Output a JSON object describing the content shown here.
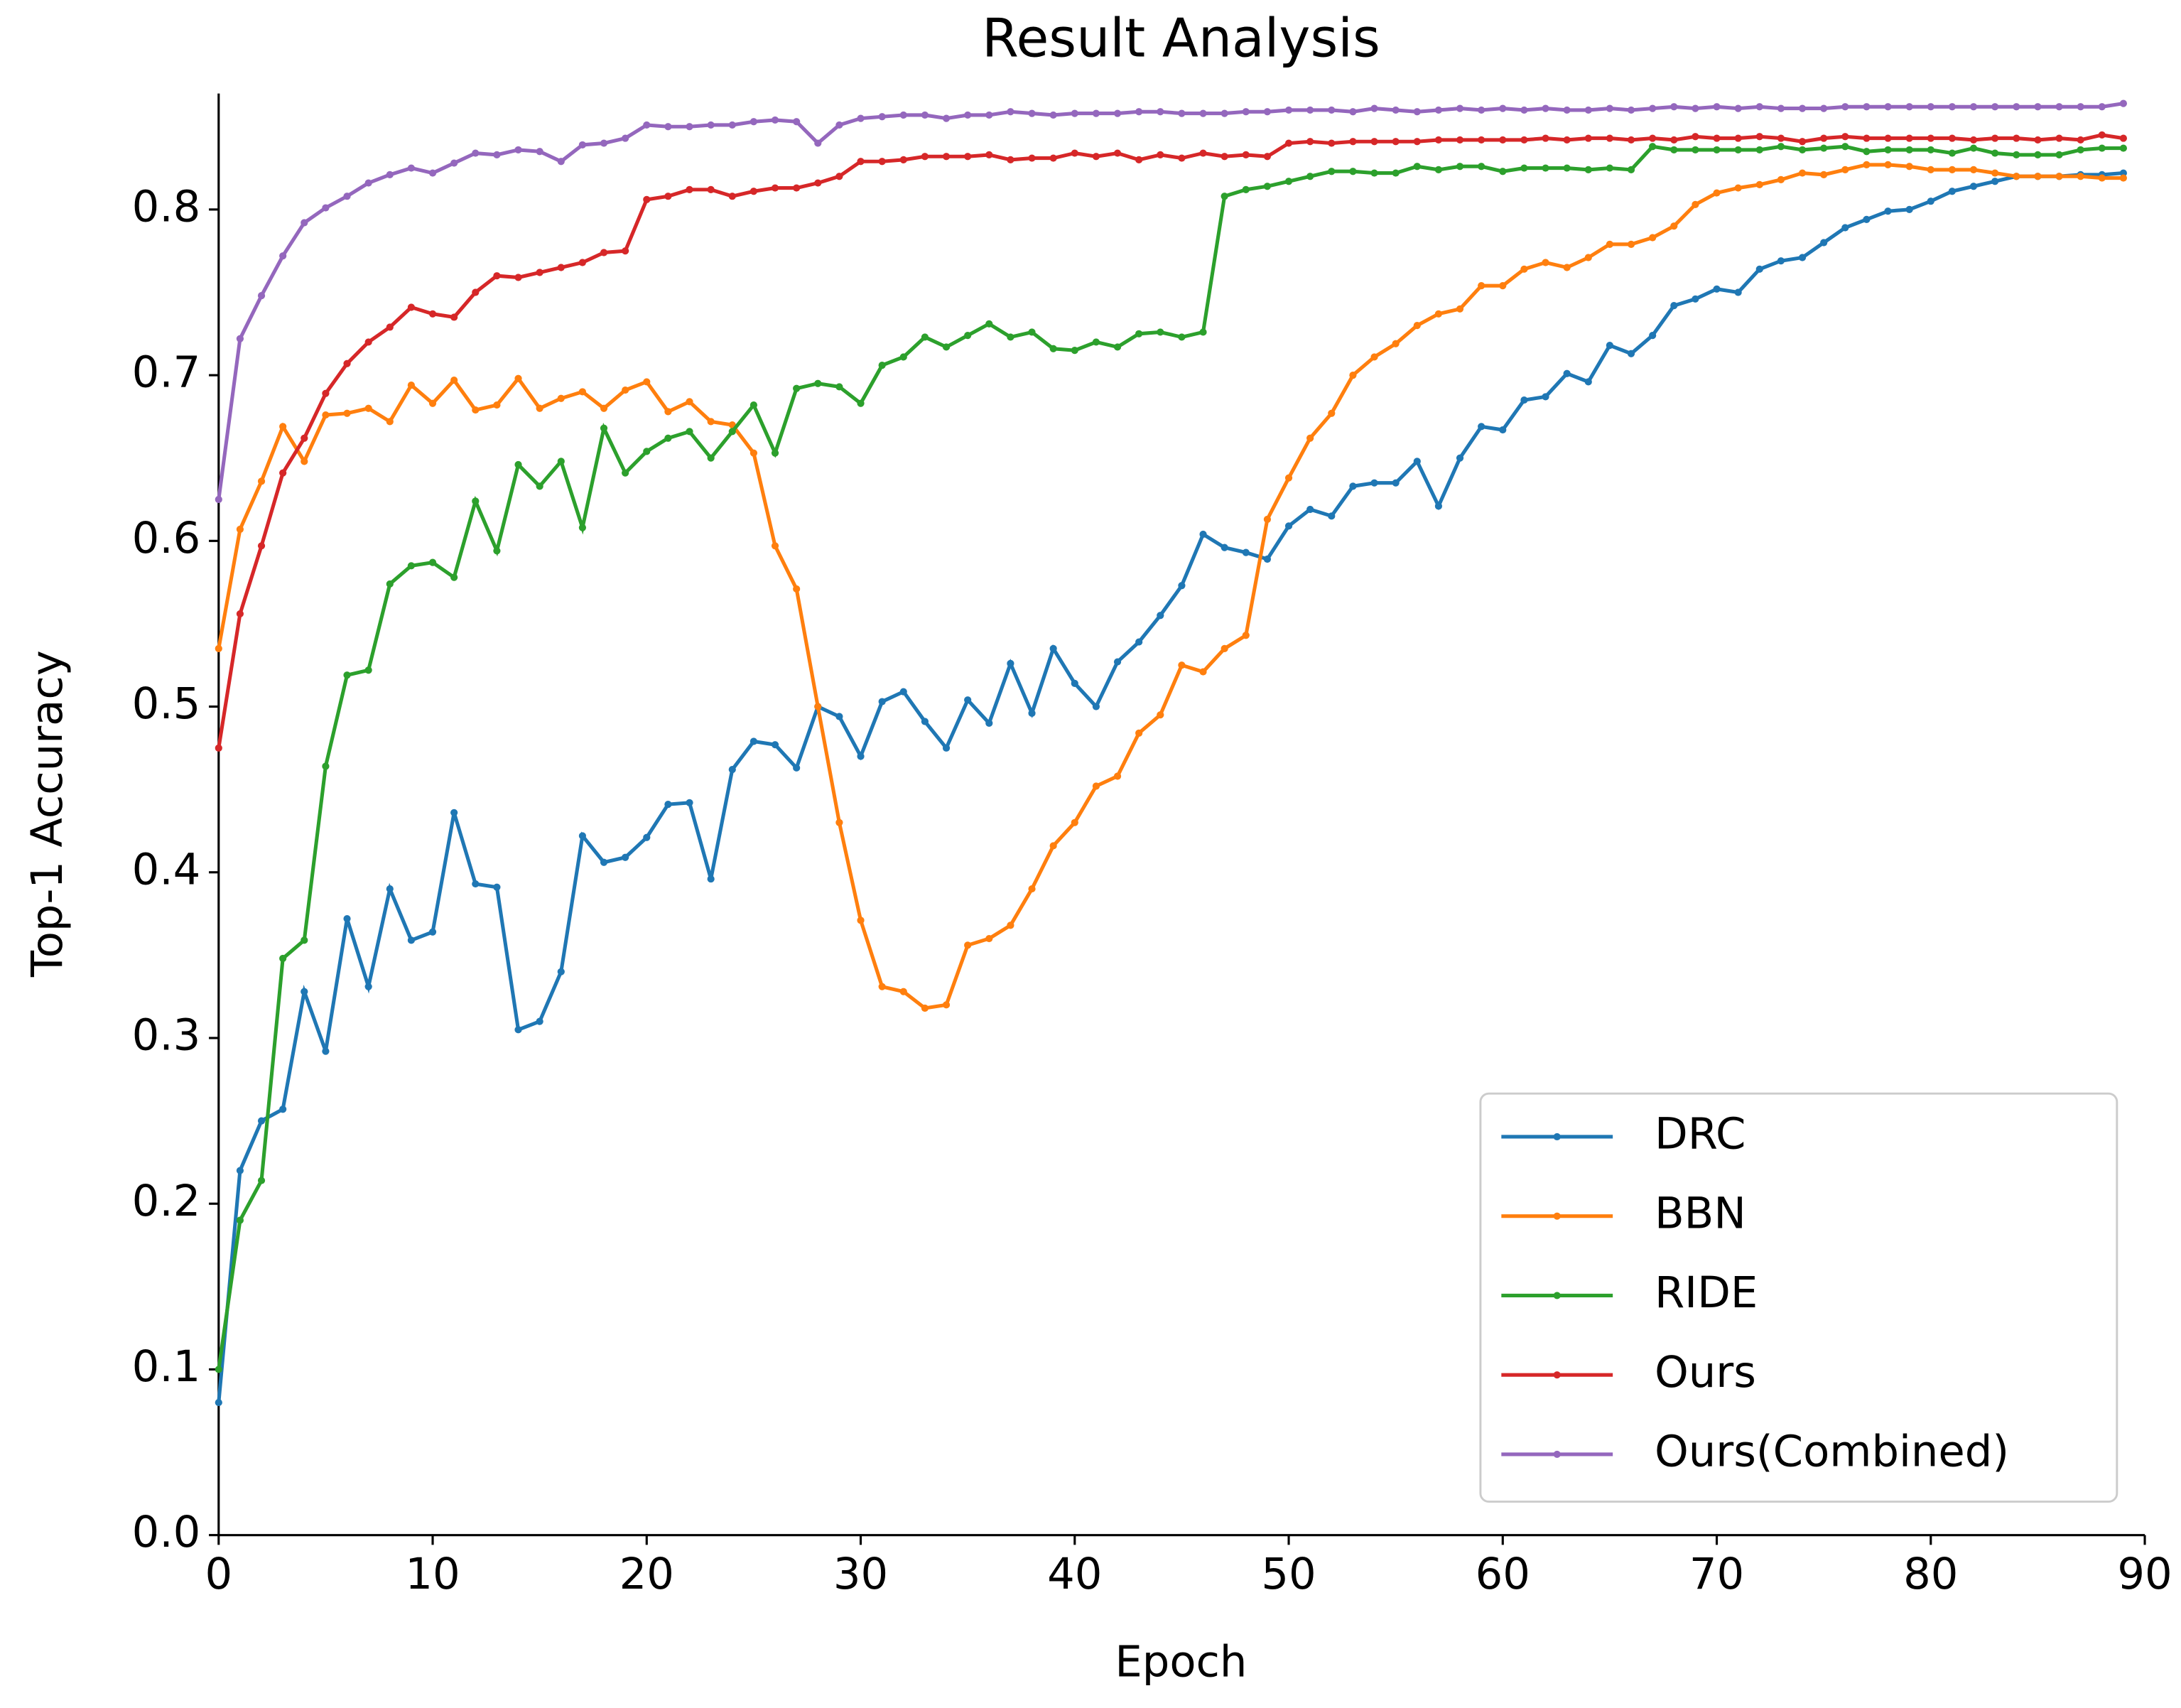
{
  "chart_data": {
    "type": "line",
    "title": "Result Analysis",
    "x_label": "Epoch",
    "y_label": "Top-1 Accuracy",
    "x": [
      0,
      1,
      2,
      3,
      4,
      5,
      6,
      7,
      8,
      9,
      10,
      11,
      12,
      13,
      14,
      15,
      16,
      17,
      18,
      19,
      20,
      21,
      22,
      23,
      24,
      25,
      26,
      27,
      28,
      29,
      30,
      31,
      32,
      33,
      34,
      35,
      36,
      37,
      38,
      39,
      40,
      41,
      42,
      43,
      44,
      45,
      46,
      47,
      48,
      49,
      50,
      51,
      52,
      53,
      54,
      55,
      56,
      57,
      58,
      59,
      60,
      61,
      62,
      63,
      64,
      65,
      66,
      67,
      68,
      69,
      70,
      71,
      72,
      73,
      74,
      75,
      76,
      77,
      78,
      79,
      80,
      81,
      82,
      83,
      84,
      85,
      86,
      87,
      88,
      89
    ],
    "series": [
      {
        "name": "DRC",
        "color": "#1f77b4",
        "values": [
          0.08,
          0.22,
          0.25,
          0.257,
          0.328,
          0.292,
          0.372,
          0.331,
          0.39,
          0.359,
          0.364,
          0.436,
          0.393,
          0.391,
          0.305,
          0.31,
          0.34,
          0.422,
          0.406,
          0.409,
          0.421,
          0.441,
          0.442,
          0.396,
          0.462,
          0.479,
          0.477,
          0.463,
          0.5,
          0.494,
          0.47,
          0.503,
          0.509,
          0.491,
          0.475,
          0.504,
          0.49,
          0.526,
          0.496,
          0.535,
          0.514,
          0.5,
          0.527,
          0.539,
          0.555,
          0.573,
          0.604,
          0.596,
          0.593,
          0.589,
          0.609,
          0.619,
          0.615,
          0.633,
          0.635,
          0.635,
          0.648,
          0.621,
          0.65,
          0.669,
          0.667,
          0.685,
          0.687,
          0.701,
          0.696,
          0.718,
          0.713,
          0.724,
          0.742,
          0.746,
          0.752,
          0.75,
          0.764,
          0.769,
          0.771,
          0.78,
          0.789,
          0.794,
          0.799,
          0.8,
          0.805,
          0.811,
          0.814,
          0.817,
          0.82,
          0.82,
          0.82,
          0.821,
          0.821,
          0.822
        ]
      },
      {
        "name": "BBN",
        "color": "#ff7f0e",
        "values": [
          0.535,
          0.607,
          0.636,
          0.669,
          0.648,
          0.676,
          0.677,
          0.68,
          0.672,
          0.694,
          0.683,
          0.697,
          0.679,
          0.682,
          0.698,
          0.68,
          0.686,
          0.69,
          0.68,
          0.691,
          0.696,
          0.678,
          0.684,
          0.672,
          0.67,
          0.653,
          0.597,
          0.571,
          0.5,
          0.43,
          0.371,
          0.331,
          0.328,
          0.318,
          0.32,
          0.356,
          0.36,
          0.368,
          0.39,
          0.416,
          0.43,
          0.452,
          0.458,
          0.484,
          0.495,
          0.525,
          0.521,
          0.535,
          0.543,
          0.613,
          0.638,
          0.662,
          0.677,
          0.7,
          0.711,
          0.719,
          0.73,
          0.737,
          0.74,
          0.754,
          0.754,
          0.764,
          0.768,
          0.765,
          0.771,
          0.779,
          0.779,
          0.783,
          0.79,
          0.803,
          0.81,
          0.813,
          0.815,
          0.818,
          0.822,
          0.821,
          0.824,
          0.827,
          0.827,
          0.826,
          0.824,
          0.824,
          0.824,
          0.822,
          0.82,
          0.82,
          0.82,
          0.82,
          0.819,
          0.819
        ]
      },
      {
        "name": "RIDE",
        "color": "#2ca02c",
        "values": [
          0.1,
          0.19,
          0.214,
          0.348,
          0.359,
          0.464,
          0.519,
          0.522,
          0.574,
          0.585,
          0.587,
          0.578,
          0.624,
          0.594,
          0.646,
          0.633,
          0.648,
          0.608,
          0.668,
          0.641,
          0.654,
          0.662,
          0.666,
          0.65,
          0.666,
          0.682,
          0.653,
          0.692,
          0.695,
          0.693,
          0.683,
          0.706,
          0.711,
          0.723,
          0.717,
          0.724,
          0.731,
          0.723,
          0.726,
          0.716,
          0.715,
          0.72,
          0.717,
          0.725,
          0.726,
          0.723,
          0.726,
          0.808,
          0.812,
          0.814,
          0.817,
          0.82,
          0.823,
          0.823,
          0.822,
          0.822,
          0.826,
          0.824,
          0.826,
          0.826,
          0.823,
          0.825,
          0.825,
          0.825,
          0.824,
          0.825,
          0.824,
          0.838,
          0.836,
          0.836,
          0.836,
          0.836,
          0.836,
          0.838,
          0.836,
          0.837,
          0.838,
          0.835,
          0.836,
          0.836,
          0.836,
          0.834,
          0.837,
          0.834,
          0.833,
          0.833,
          0.833,
          0.836,
          0.837,
          0.837
        ]
      },
      {
        "name": "Ours",
        "color": "#d62728",
        "values": [
          0.475,
          0.556,
          0.597,
          0.641,
          0.662,
          0.689,
          0.707,
          0.72,
          0.729,
          0.741,
          0.737,
          0.735,
          0.75,
          0.76,
          0.759,
          0.762,
          0.765,
          0.768,
          0.774,
          0.775,
          0.806,
          0.808,
          0.812,
          0.812,
          0.808,
          0.811,
          0.813,
          0.813,
          0.816,
          0.82,
          0.829,
          0.829,
          0.83,
          0.832,
          0.832,
          0.832,
          0.833,
          0.83,
          0.831,
          0.831,
          0.834,
          0.832,
          0.834,
          0.83,
          0.833,
          0.831,
          0.834,
          0.832,
          0.833,
          0.832,
          0.84,
          0.841,
          0.84,
          0.841,
          0.841,
          0.841,
          0.841,
          0.842,
          0.842,
          0.842,
          0.842,
          0.842,
          0.843,
          0.842,
          0.843,
          0.843,
          0.842,
          0.843,
          0.842,
          0.844,
          0.843,
          0.843,
          0.844,
          0.843,
          0.841,
          0.843,
          0.844,
          0.843,
          0.843,
          0.843,
          0.843,
          0.843,
          0.842,
          0.843,
          0.843,
          0.842,
          0.843,
          0.842,
          0.845,
          0.843
        ]
      },
      {
        "name": "Ours(Combined)",
        "color": "#9467bd",
        "values": [
          0.625,
          0.722,
          0.748,
          0.772,
          0.792,
          0.801,
          0.808,
          0.816,
          0.821,
          0.825,
          0.822,
          0.828,
          0.834,
          0.833,
          0.836,
          0.835,
          0.829,
          0.839,
          0.84,
          0.843,
          0.851,
          0.85,
          0.85,
          0.851,
          0.851,
          0.853,
          0.854,
          0.853,
          0.84,
          0.851,
          0.855,
          0.856,
          0.857,
          0.857,
          0.855,
          0.857,
          0.857,
          0.859,
          0.858,
          0.857,
          0.858,
          0.858,
          0.858,
          0.859,
          0.859,
          0.858,
          0.858,
          0.858,
          0.859,
          0.859,
          0.86,
          0.86,
          0.86,
          0.859,
          0.861,
          0.86,
          0.859,
          0.86,
          0.861,
          0.86,
          0.861,
          0.86,
          0.861,
          0.86,
          0.86,
          0.861,
          0.86,
          0.861,
          0.862,
          0.861,
          0.862,
          0.861,
          0.862,
          0.861,
          0.861,
          0.861,
          0.862,
          0.862,
          0.862,
          0.862,
          0.862,
          0.862,
          0.862,
          0.862,
          0.862,
          0.862,
          0.862,
          0.862,
          0.862,
          0.864
        ]
      }
    ],
    "xlim": [
      0,
      90
    ],
    "xticks": [
      0,
      10,
      20,
      30,
      40,
      50,
      60,
      70,
      80,
      90
    ],
    "ylim": [
      0,
      0.87
    ],
    "yticks": [
      {
        "value": 0,
        "label": "0.0"
      },
      0.1,
      0.2,
      0.3,
      0.4,
      0.5,
      0.6,
      0.7,
      0.8
    ],
    "legend": "lower right"
  }
}
